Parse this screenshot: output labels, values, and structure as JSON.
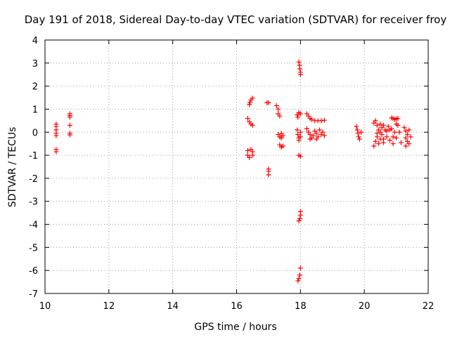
{
  "chart_data": {
    "type": "scatter",
    "title": "Day 191 of 2018, Sidereal Day-to-day VTEC variation (SDTVAR) for receiver froy",
    "xlabel": "GPS time / hours",
    "ylabel": "SDTVAR / TECUs",
    "xlim": [
      10,
      22
    ],
    "ylim": [
      -7,
      4
    ],
    "grid": true,
    "x_ticks": [
      10,
      12,
      14,
      16,
      18,
      20,
      22
    ],
    "y_ticks": [
      4,
      3,
      2,
      1,
      0,
      -1,
      -2,
      -3,
      -4,
      -5,
      -6,
      -7
    ],
    "x_tick_labels": [
      "10",
      "12",
      "14",
      "16",
      "18",
      "20",
      "22"
    ],
    "y_tick_labels": [
      "4",
      "3",
      "2",
      "1",
      "0",
      "-1",
      "-2",
      "-3",
      "-4",
      "-5",
      "-6",
      "-7"
    ],
    "marker": "plus",
    "marker_color": "#ff0000",
    "series": [
      {
        "name": "SDTVAR",
        "points": [
          [
            10.35,
            0.35
          ],
          [
            10.35,
            0.25
          ],
          [
            10.35,
            0.1
          ],
          [
            10.35,
            -0.05
          ],
          [
            10.35,
            -0.15
          ],
          [
            10.35,
            -0.75
          ],
          [
            10.35,
            -0.85
          ],
          [
            10.78,
            0.8
          ],
          [
            10.78,
            0.72
          ],
          [
            10.78,
            0.65
          ],
          [
            10.78,
            0.3
          ],
          [
            10.78,
            -0.05
          ],
          [
            10.78,
            -0.12
          ],
          [
            16.4,
            1.2
          ],
          [
            16.42,
            1.3
          ],
          [
            16.45,
            1.4
          ],
          [
            16.5,
            1.48
          ],
          [
            16.35,
            0.6
          ],
          [
            16.4,
            0.45
          ],
          [
            16.45,
            0.35
          ],
          [
            16.5,
            0.3
          ],
          [
            16.35,
            -0.8
          ],
          [
            16.35,
            -1.0
          ],
          [
            16.4,
            -1.1
          ],
          [
            16.45,
            -0.75
          ],
          [
            16.5,
            -0.85
          ],
          [
            16.5,
            -1.0
          ],
          [
            16.95,
            1.28
          ],
          [
            17.0,
            1.28
          ],
          [
            17.0,
            -1.6
          ],
          [
            17.0,
            -1.7
          ],
          [
            17.0,
            -1.85
          ],
          [
            17.25,
            1.15
          ],
          [
            17.3,
            1.0
          ],
          [
            17.3,
            0.8
          ],
          [
            17.35,
            0.7
          ],
          [
            17.3,
            -0.1
          ],
          [
            17.35,
            -0.2
          ],
          [
            17.4,
            -0.05
          ],
          [
            17.4,
            -0.25
          ],
          [
            17.45,
            -0.15
          ],
          [
            17.35,
            -0.55
          ],
          [
            17.4,
            -0.65
          ],
          [
            17.45,
            -0.6
          ],
          [
            17.9,
            0.75
          ],
          [
            17.92,
            0.65
          ],
          [
            17.95,
            0.85
          ],
          [
            18.0,
            0.8
          ],
          [
            17.9,
            0.1
          ],
          [
            17.92,
            -0.1
          ],
          [
            17.95,
            -0.25
          ],
          [
            18.0,
            0.0
          ],
          [
            18.0,
            -0.2
          ],
          [
            17.95,
            -0.35
          ],
          [
            17.95,
            3.05
          ],
          [
            17.97,
            2.9
          ],
          [
            17.98,
            2.75
          ],
          [
            18.0,
            2.6
          ],
          [
            18.0,
            2.5
          ],
          [
            17.95,
            -1.0
          ],
          [
            18.0,
            -1.05
          ],
          [
            18.0,
            -3.45
          ],
          [
            18.0,
            -3.6
          ],
          [
            17.98,
            -3.75
          ],
          [
            17.95,
            -3.85
          ],
          [
            18.0,
            -5.9
          ],
          [
            17.98,
            -6.2
          ],
          [
            17.95,
            -6.35
          ],
          [
            17.92,
            -6.45
          ],
          [
            18.2,
            0.8
          ],
          [
            18.25,
            0.7
          ],
          [
            18.3,
            0.6
          ],
          [
            18.35,
            0.55
          ],
          [
            18.45,
            0.5
          ],
          [
            18.55,
            0.5
          ],
          [
            18.65,
            0.5
          ],
          [
            18.75,
            0.52
          ],
          [
            18.2,
            0.15
          ],
          [
            18.25,
            0.0
          ],
          [
            18.3,
            -0.1
          ],
          [
            18.35,
            -0.25
          ],
          [
            18.4,
            -0.15
          ],
          [
            18.45,
            0.05
          ],
          [
            18.5,
            -0.05
          ],
          [
            18.55,
            -0.2
          ],
          [
            18.6,
            0.1
          ],
          [
            18.65,
            -0.1
          ],
          [
            18.7,
            0.0
          ],
          [
            18.75,
            -0.15
          ],
          [
            18.3,
            -0.3
          ],
          [
            18.5,
            -0.3
          ],
          [
            19.75,
            0.25
          ],
          [
            19.78,
            0.1
          ],
          [
            19.8,
            -0.05
          ],
          [
            19.82,
            -0.2
          ],
          [
            19.85,
            -0.3
          ],
          [
            19.9,
            0.0
          ],
          [
            20.3,
            0.4
          ],
          [
            20.35,
            0.5
          ],
          [
            20.4,
            0.3
          ],
          [
            20.45,
            0.1
          ],
          [
            20.5,
            0.35
          ],
          [
            20.55,
            0.2
          ],
          [
            20.6,
            0.3
          ],
          [
            20.3,
            -0.6
          ],
          [
            20.35,
            -0.4
          ],
          [
            20.4,
            -0.2
          ],
          [
            20.45,
            -0.5
          ],
          [
            20.5,
            -0.3
          ],
          [
            20.55,
            -0.1
          ],
          [
            20.6,
            -0.45
          ],
          [
            20.65,
            0.1
          ],
          [
            20.7,
            -0.2
          ],
          [
            20.75,
            0.25
          ],
          [
            20.8,
            -0.35
          ],
          [
            20.85,
            0.15
          ],
          [
            20.9,
            -0.5
          ],
          [
            20.95,
            0.0
          ],
          [
            21.0,
            -0.25
          ],
          [
            21.05,
            0.3
          ],
          [
            21.1,
            0.0
          ],
          [
            21.15,
            -0.45
          ],
          [
            21.0,
            0.35
          ],
          [
            20.4,
            -0.05
          ],
          [
            20.5,
            0.0
          ],
          [
            20.6,
            -0.3
          ],
          [
            20.7,
            0.05
          ],
          [
            20.8,
            0.1
          ],
          [
            20.9,
            -0.2
          ],
          [
            20.85,
            0.62
          ],
          [
            20.9,
            0.6
          ],
          [
            20.95,
            0.55
          ],
          [
            21.0,
            0.58
          ],
          [
            21.05,
            0.6
          ],
          [
            21.25,
            0.2
          ],
          [
            21.3,
            0.05
          ],
          [
            21.35,
            -0.1
          ],
          [
            21.3,
            -0.25
          ],
          [
            21.35,
            -0.4
          ],
          [
            21.4,
            0.1
          ],
          [
            21.45,
            -0.2
          ],
          [
            21.4,
            -0.5
          ],
          [
            21.3,
            -0.6
          ]
        ]
      }
    ]
  }
}
